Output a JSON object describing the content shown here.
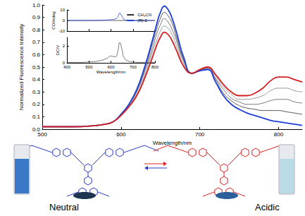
{
  "chart_data": [
    {
      "type": "line",
      "x_label": "Wavelength/nm",
      "y_label": "Normalized Fluorescence Intensity",
      "x": [
        500,
        520,
        540,
        560,
        580,
        590,
        600,
        610,
        620,
        630,
        640,
        645,
        650,
        655,
        660,
        665,
        670,
        680,
        690,
        700,
        710,
        720,
        730,
        740,
        750,
        760,
        770,
        780,
        790,
        800,
        810,
        820,
        830
      ],
      "series": [
        {
          "color": "#555555",
          "values": [
            0.02,
            0.02,
            0.02,
            0.025,
            0.04,
            0.06,
            0.12,
            0.2,
            0.31,
            0.48,
            0.69,
            0.8,
            0.89,
            0.94,
            0.91,
            0.85,
            0.75,
            0.55,
            0.45,
            0.47,
            0.49,
            0.4,
            0.29,
            0.23,
            0.19,
            0.17,
            0.16,
            0.15,
            0.15,
            0.15,
            0.14,
            0.13,
            0.12
          ]
        },
        {
          "color": "#777777",
          "values": [
            0.02,
            0.02,
            0.02,
            0.025,
            0.04,
            0.06,
            0.115,
            0.19,
            0.3,
            0.46,
            0.65,
            0.76,
            0.84,
            0.89,
            0.86,
            0.8,
            0.72,
            0.54,
            0.45,
            0.475,
            0.49,
            0.41,
            0.32,
            0.25,
            0.22,
            0.2,
            0.2,
            0.21,
            0.23,
            0.24,
            0.24,
            0.22,
            0.21
          ]
        },
        {
          "color": "#999999",
          "values": [
            0.02,
            0.02,
            0.02,
            0.025,
            0.04,
            0.06,
            0.11,
            0.185,
            0.28,
            0.43,
            0.62,
            0.71,
            0.79,
            0.83,
            0.81,
            0.76,
            0.68,
            0.52,
            0.45,
            0.48,
            0.5,
            0.43,
            0.34,
            0.28,
            0.24,
            0.24,
            0.25,
            0.27,
            0.31,
            0.33,
            0.33,
            0.31,
            0.3
          ]
        },
        {
          "color": "#1f3fd6",
          "values": [
            0.02,
            0.02,
            0.02,
            0.025,
            0.04,
            0.06,
            0.12,
            0.2,
            0.32,
            0.5,
            0.72,
            0.84,
            0.94,
            0.99,
            0.96,
            0.89,
            0.79,
            0.57,
            0.45,
            0.47,
            0.48,
            0.38,
            0.27,
            0.2,
            0.16,
            0.13,
            0.11,
            0.09,
            0.07,
            0.06,
            0.05,
            0.04,
            0.03
          ]
        },
        {
          "color": "#d42020",
          "values": [
            0.02,
            0.02,
            0.02,
            0.025,
            0.04,
            0.06,
            0.11,
            0.18,
            0.27,
            0.41,
            0.58,
            0.67,
            0.74,
            0.78,
            0.76,
            0.71,
            0.64,
            0.5,
            0.45,
            0.48,
            0.5,
            0.44,
            0.36,
            0.3,
            0.27,
            0.27,
            0.29,
            0.33,
            0.39,
            0.42,
            0.42,
            0.4,
            0.38
          ]
        }
      ],
      "xlim": [
        500,
        830
      ],
      "xticks": [
        500,
        600,
        700,
        800
      ],
      "ylim": [
        0,
        1
      ],
      "yticks": [
        {
          "value": 0,
          "label": "0.0"
        },
        0.1,
        0.2,
        0.3,
        0.4,
        0.5,
        0.6,
        0.7,
        0.8,
        0.9,
        {
          "value": 1,
          "label": "1.0"
        }
      ],
      "grid": false
    },
    {
      "type": "line",
      "y_label": "CD/mdeg",
      "x": [
        400,
        450,
        500,
        550,
        580,
        600,
        620,
        630,
        640,
        650,
        660,
        680,
        700,
        750,
        800
      ],
      "series": [
        {
          "name": "CH₃CN",
          "color": "#333333",
          "values": [
            0,
            0,
            0,
            0,
            0,
            0,
            0,
            0,
            0,
            0,
            0,
            0,
            0,
            0,
            0
          ]
        },
        {
          "name": "(R)-2",
          "color": "#1f3fd6",
          "values": [
            0,
            0,
            0,
            0.2,
            0.5,
            0.8,
            1.5,
            3,
            7,
            4,
            1,
            0,
            0,
            0,
            0
          ]
        }
      ],
      "xlim": [
        400,
        800
      ],
      "xticks": [
        400,
        500,
        600,
        700,
        800
      ],
      "ylim": [
        -10,
        10
      ],
      "yticks": [
        -10,
        0,
        10
      ],
      "tick_labels": "y",
      "legend": "upper right",
      "grid": false
    },
    {
      "type": "line",
      "x_label": "Wavelength/nm",
      "y_label": "DC/V",
      "x": [
        400,
        450,
        500,
        550,
        580,
        600,
        620,
        630,
        640,
        650,
        660,
        680,
        700,
        750,
        800
      ],
      "series": [
        {
          "color": "#555555",
          "values": [
            0.05,
            0.05,
            0.1,
            0.25,
            0.5,
            0.8,
            0.7,
            1.2,
            2.4,
            1.6,
            0.6,
            0.2,
            0.1,
            0.05,
            0.05
          ]
        }
      ],
      "xlim": [
        400,
        800
      ],
      "xticks": [
        400,
        500,
        600,
        700,
        800
      ],
      "ylim": [
        0,
        3
      ],
      "yticks": [
        0,
        2
      ],
      "grid": false
    }
  ],
  "panels": {
    "left": {
      "label": "Neutral",
      "color": "#2b3cc9"
    },
    "right": {
      "label": "Acidic",
      "color": "#e02020"
    }
  }
}
